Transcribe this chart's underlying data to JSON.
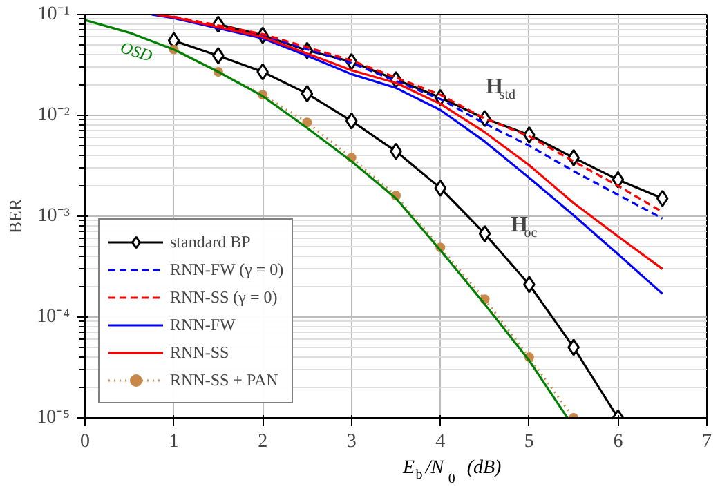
{
  "chart_data": {
    "type": "line",
    "xlabel": "E$_{b}$/N$_{0}$ (dB)",
    "ylabel": "BER",
    "log": "y",
    "grid": true,
    "legend": "bottom left",
    "xlim": [
      0,
      7
    ],
    "xticks": [
      0,
      1,
      2,
      3,
      4,
      5,
      6,
      7
    ],
    "ylim": [
      1e-05,
      0.1
    ],
    "yticks": [
      {
        "value": 1e-05,
        "label": "10⁻⁵"
      },
      {
        "value": 0.0001,
        "label": "10⁻⁴"
      },
      {
        "value": 0.001,
        "label": "10⁻³"
      },
      {
        "value": 0.01,
        "label": "10⁻²"
      },
      {
        "value": 0.1,
        "label": "10⁻¹"
      }
    ],
    "series": [
      {
        "name": "standard BP",
        "color": "#000000",
        "marker": "diamond",
        "line_style": "solid",
        "x": [
          1.5,
          2,
          2.5,
          3,
          3.5,
          4,
          4.5,
          5,
          5.5,
          6,
          6.5
        ],
        "values": [
          0.08,
          0.0622,
          0.044,
          0.0341,
          0.0226,
          0.015,
          0.0093,
          0.0064,
          0.0038,
          0.0023,
          0.0015
        ]
      },
      {
        "color": "#000000",
        "marker": "diamond",
        "line_style": "solid",
        "x": [
          1,
          1.5,
          2,
          2.5,
          3,
          3.5,
          4,
          4.5,
          5,
          5.5,
          6
        ],
        "values": [
          0.055,
          0.039,
          0.027,
          0.0164,
          0.0088,
          0.0044,
          0.0019,
          0.00067,
          0.00021,
          5e-05,
          1e-05
        ]
      },
      {
        "name": "RNN-FW (γ = 0)",
        "color": "#0000ff",
        "marker": "none",
        "line_style": "dashed",
        "x": [
          1,
          2,
          3,
          4,
          4.5,
          5,
          5.5,
          6,
          6.5
        ],
        "values": [
          0.095,
          0.062,
          0.033,
          0.0145,
          0.0083,
          0.005,
          0.0028,
          0.00163,
          0.00095
        ]
      },
      {
        "name": "RNN-SS (γ = 0)",
        "color": "#ff0000",
        "marker": "none",
        "line_style": "dashed",
        "x": [
          1,
          2,
          3,
          4,
          4.5,
          5,
          5.5,
          6,
          6.5
        ],
        "values": [
          0.095,
          0.064,
          0.035,
          0.016,
          0.0093,
          0.0062,
          0.0035,
          0.002,
          0.0011
        ]
      },
      {
        "name": "RNN-FW",
        "color": "#0000ff",
        "marker": "none",
        "line_style": "solid",
        "x": [
          0.75,
          1,
          1.5,
          2,
          2.5,
          3,
          3.5,
          4,
          4.5,
          5,
          5.5,
          6,
          6.5
        ],
        "values": [
          0.1,
          0.092,
          0.073,
          0.058,
          0.039,
          0.0256,
          0.0187,
          0.0113,
          0.0055,
          0.0024,
          0.00102,
          0.00042,
          0.00017
        ]
      },
      {
        "name": "RNN-SS",
        "color": "#ff0000",
        "marker": "none",
        "line_style": "solid",
        "x": [
          0.8,
          1,
          1.5,
          2,
          2.5,
          3,
          3.5,
          4,
          4.5,
          5,
          5.5,
          6,
          6.5
        ],
        "values": [
          0.1,
          0.094,
          0.075,
          0.06,
          0.041,
          0.028,
          0.021,
          0.013,
          0.0068,
          0.0032,
          0.00135,
          0.00063,
          0.0003
        ]
      },
      {
        "name": "RNN-SS + PAN",
        "color": "#c8884a",
        "marker": "circle",
        "line_style": "dotted",
        "x": [
          1,
          1.5,
          2,
          2.5,
          3,
          3.5,
          4,
          4.5,
          5,
          5.5
        ],
        "values": [
          0.045,
          0.027,
          0.016,
          0.0085,
          0.0038,
          0.0016,
          0.00049,
          0.00015,
          4e-05,
          1e-05
        ]
      },
      {
        "color": "#008000",
        "marker": "none",
        "line_style": "solid",
        "x": [
          0,
          0.5,
          1,
          1.5,
          2,
          2.5,
          3,
          3.5,
          4,
          4.5,
          5,
          5.43
        ],
        "values": [
          0.088,
          0.066,
          0.045,
          0.027,
          0.0155,
          0.0075,
          0.0035,
          0.0015,
          0.00046,
          0.000134,
          3.7e-05,
          1e-05
        ]
      }
    ],
    "annotations": [
      "H$_{std}$",
      "H$_{oc}$",
      "OSD"
    ]
  }
}
